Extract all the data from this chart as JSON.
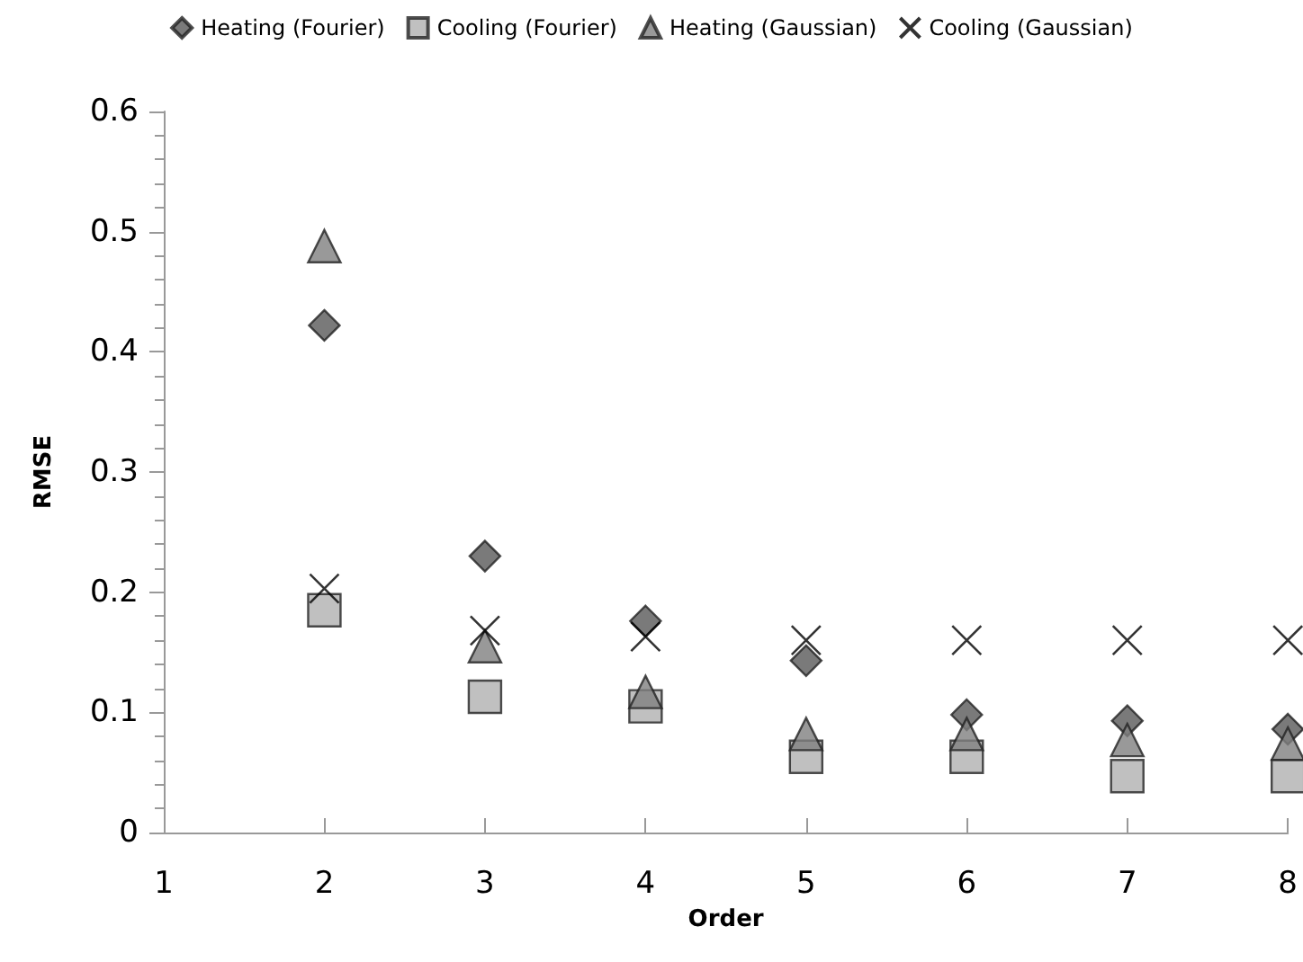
{
  "chart_data": {
    "type": "scatter",
    "xlabel": "Order",
    "ylabel": "RMSE",
    "x": [
      2,
      3,
      4,
      5,
      6,
      7,
      8
    ],
    "xlim": [
      1,
      8
    ],
    "xticks": [
      1,
      2,
      3,
      4,
      5,
      6,
      7,
      8
    ],
    "ylim": [
      0,
      0.6
    ],
    "yticks": [
      0,
      0.1,
      0.2,
      0.3,
      0.4,
      0.5,
      0.6
    ],
    "grid": false,
    "legend": "top",
    "series": [
      {
        "name": "Heating (Fourier)",
        "color": "#595959",
        "marker": "diamond",
        "values": [
          0.422,
          0.23,
          0.176,
          0.143,
          0.098,
          0.093,
          0.086
        ]
      },
      {
        "name": "Cooling (Fourier)",
        "color": "#b0b0b0",
        "marker": "square",
        "values": [
          0.185,
          0.113,
          0.105,
          0.063,
          0.063,
          0.047,
          0.047
        ]
      },
      {
        "name": "Heating (Gaussian)",
        "color": "#808080",
        "marker": "triangle",
        "values": [
          0.488,
          0.155,
          0.117,
          0.082,
          0.082,
          0.077,
          0.074
        ]
      },
      {
        "name": "Cooling (Gaussian)",
        "color": "#000000",
        "marker": "cross",
        "values": [
          0.203,
          0.168,
          0.163,
          0.16,
          0.16,
          0.16,
          0.16
        ]
      }
    ]
  }
}
